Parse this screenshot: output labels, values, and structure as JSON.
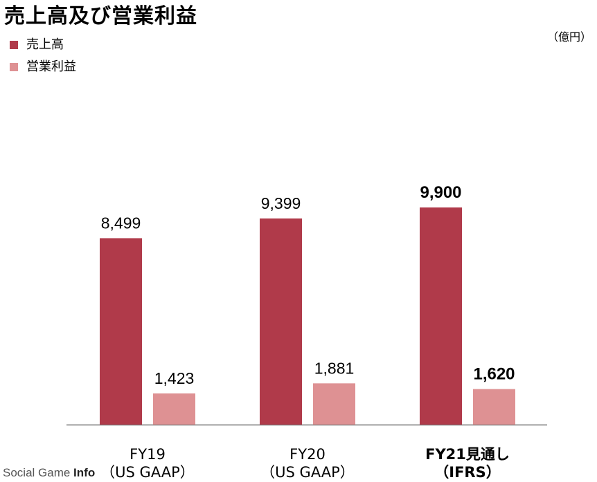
{
  "title": "売上高及び営業利益",
  "unit": "（億円）",
  "watermark": {
    "prefix": "Social Game ",
    "suffix": "Info"
  },
  "colors": {
    "revenue": "#b03a4a",
    "operating_income": "#de9193",
    "axis": "#777777"
  },
  "chart_data": {
    "type": "bar",
    "title": "売上高及び営業利益",
    "unit": "（億円）",
    "categories": [
      {
        "line1": "FY19",
        "line2": "（US GAAP）",
        "bold": false
      },
      {
        "line1": "FY20",
        "line2": "（US GAAP）",
        "bold": false
      },
      {
        "line1": "FY21見通し",
        "line2": "（IFRS）",
        "bold": true
      }
    ],
    "series": [
      {
        "name": "売上高",
        "values": [
          8499,
          9399,
          9900
        ],
        "labels": [
          "8,499",
          "9,399",
          "9,900"
        ]
      },
      {
        "name": "営業利益",
        "values": [
          1423,
          1881,
          1620
        ],
        "labels": [
          "1,423",
          "1,881",
          "1,620"
        ]
      }
    ],
    "ylim": [
      0,
      10000
    ],
    "grid": false,
    "legend": "top-left"
  }
}
